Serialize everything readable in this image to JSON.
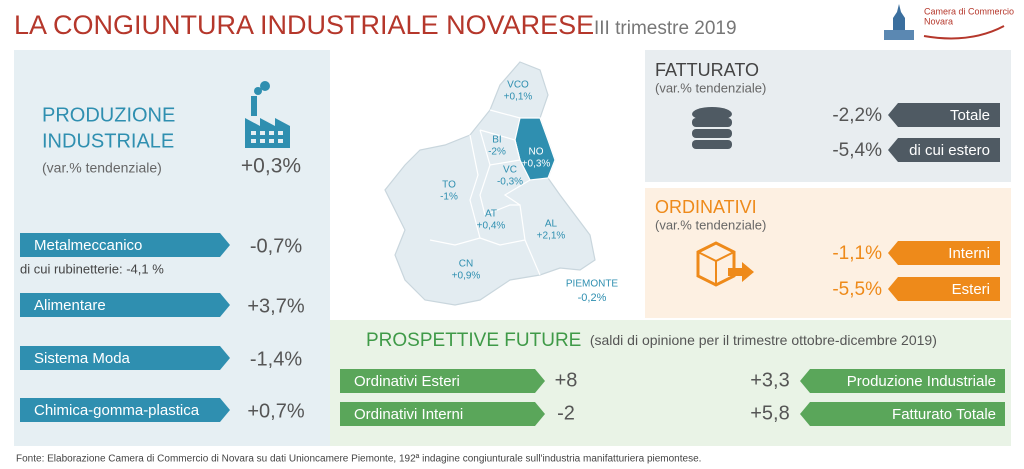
{
  "header": {
    "title": "LA CONGIUNTURA INDUSTRIALE NOVARESE",
    "subtitle": "III trimestre 2019",
    "logo_line1": "Camera di Commercio",
    "logo_line2": "Novara"
  },
  "produzione": {
    "title_line1": "PRODUZIONE",
    "title_line2": "INDUSTRIALE",
    "note": "(var.% tendenziale)",
    "value": "+0,3%",
    "sectors": [
      {
        "label": "Metalmeccanico",
        "value": "-0,7%",
        "note": "di cui rubinetterie: -4,1 %"
      },
      {
        "label": "Alimentare",
        "value": "+3,7%"
      },
      {
        "label": "Sistema Moda",
        "value": "-1,4%"
      },
      {
        "label": "Chimica-gomma-plastica",
        "value": "+0,7%"
      }
    ]
  },
  "map": {
    "regions": [
      {
        "label": "VCO",
        "value": "+0,1%"
      },
      {
        "label": "BI",
        "value": "-2%"
      },
      {
        "label": "NO",
        "value": "+0,3%"
      },
      {
        "label": "TO",
        "value": "-1%"
      },
      {
        "label": "VC",
        "value": "-0,3%"
      },
      {
        "label": "AT",
        "value": "+0,4%"
      },
      {
        "label": "AL",
        "value": "+2,1%"
      },
      {
        "label": "CN",
        "value": "+0,9%"
      }
    ],
    "total": {
      "label": "PIEMONTE",
      "value": "-0,2%"
    }
  },
  "fatturato": {
    "title": "FATTURATO",
    "note": "(var.% tendenziale)",
    "rows": [
      {
        "label": "Totale",
        "value": "-2,2%"
      },
      {
        "label": "di cui estero",
        "value": "-5,4%"
      }
    ]
  },
  "ordinativi": {
    "title": "ORDINATIVI",
    "note": "(var.% tendenziale)",
    "rows": [
      {
        "label": "Interni",
        "value": "-1,1%"
      },
      {
        "label": "Esteri",
        "value": "-5,5%"
      }
    ]
  },
  "prospettive": {
    "title": "PROSPETTIVE FUTURE",
    "note": "(saldi di opinione per il trimestre ottobre-dicembre 2019)",
    "left": [
      {
        "label": "Ordinativi Esteri",
        "value": "+8"
      },
      {
        "label": "Ordinativi Interni",
        "value": "-2"
      }
    ],
    "right": [
      {
        "label": "Produzione Industriale",
        "value": "+3,3"
      },
      {
        "label": "Fatturato Totale",
        "value": "+5,8"
      }
    ]
  },
  "footer": "Fonte: Elaborazione Camera di Commercio di Novara su dati Unioncamere Piemonte, 192ª indagine congiunturale sull'industria manifatturiera piemontese."
}
